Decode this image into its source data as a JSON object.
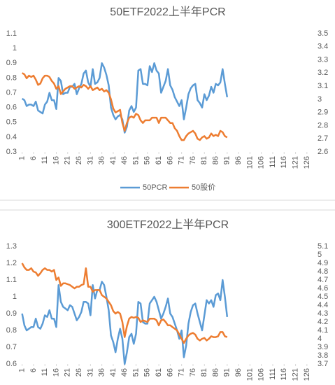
{
  "chart_data": [
    {
      "type": "line",
      "title": "50ETF2022上半年PCR",
      "x": [
        1,
        2,
        3,
        4,
        5,
        6,
        7,
        8,
        9,
        10,
        11,
        12,
        13,
        14,
        15,
        16,
        17,
        18,
        19,
        20,
        21,
        22,
        23,
        24,
        25,
        26,
        27,
        28,
        29,
        30,
        31,
        32,
        33,
        34,
        35,
        36,
        37,
        38,
        39,
        40,
        41,
        42,
        43,
        44,
        45,
        46,
        47,
        48,
        49,
        50,
        51,
        52,
        53,
        54,
        55,
        56,
        57,
        58,
        59,
        60,
        61,
        62,
        63,
        64,
        65,
        66,
        67,
        68,
        69,
        70,
        71,
        72,
        73,
        74,
        75,
        76,
        77,
        78,
        79,
        80,
        81,
        82,
        83,
        84,
        85,
        86,
        87,
        88,
        89,
        90,
        91
      ],
      "xlim": [
        0.5,
        128.5
      ],
      "xticks": [
        1,
        6,
        11,
        16,
        21,
        26,
        31,
        36,
        41,
        46,
        51,
        56,
        61,
        66,
        71,
        76,
        81,
        86,
        91,
        96,
        101,
        106,
        111,
        116,
        121,
        126
      ],
      "ylim": [
        0.3,
        1.1
      ],
      "yticks": [
        0.3,
        0.4,
        0.5,
        0.6,
        0.7,
        0.8,
        0.9,
        1,
        1.1
      ],
      "y2lim": [
        2.6,
        3.5
      ],
      "y2ticks": [
        2.6,
        2.7,
        2.8,
        2.9,
        3,
        3.1,
        3.2,
        3.3,
        3.4,
        3.5
      ],
      "legend": "bottom",
      "series": [
        {
          "name": "50PCR",
          "color": "#5b9bd5",
          "values": [
            0.66,
            0.65,
            0.61,
            0.62,
            0.62,
            0.61,
            0.64,
            0.58,
            0.57,
            0.56,
            0.62,
            0.64,
            0.7,
            0.65,
            0.65,
            0.59,
            0.8,
            0.78,
            0.69,
            0.7,
            0.7,
            0.74,
            0.74,
            0.76,
            0.69,
            0.73,
            0.76,
            0.83,
            0.85,
            0.77,
            0.74,
            0.86,
            0.76,
            0.77,
            0.8,
            0.9,
            0.87,
            0.82,
            0.75,
            0.6,
            0.55,
            0.52,
            0.54,
            0.55,
            0.52,
            0.43,
            0.47,
            0.58,
            0.61,
            0.57,
            0.6,
            0.85,
            0.86,
            0.76,
            0.76,
            0.75,
            0.88,
            0.84,
            0.9,
            0.85,
            0.83,
            0.7,
            0.74,
            0.78,
            0.86,
            0.75,
            0.72,
            0.67,
            0.64,
            0.61,
            0.65,
            0.52,
            0.6,
            0.69,
            0.73,
            0.75,
            0.76,
            0.65,
            0.63,
            0.6,
            0.69,
            0.65,
            0.68,
            0.74,
            0.7,
            0.76,
            0.75,
            0.77,
            0.86,
            0.76,
            0.67
          ]
        },
        {
          "name": "50股价",
          "color": "#ed7d31",
          "axis": "y2",
          "values": [
            3.2,
            3.19,
            3.16,
            3.18,
            3.17,
            3.18,
            3.15,
            3.11,
            3.12,
            3.16,
            3.18,
            3.18,
            3.17,
            3.14,
            3.12,
            3.08,
            3.1,
            3.04,
            3.06,
            3.08,
            3.09,
            3.1,
            3.1,
            3.08,
            3.09,
            3.1,
            3.09,
            3.11,
            3.1,
            3.08,
            3.1,
            3.07,
            3.08,
            3.09,
            3.07,
            3.08,
            3.06,
            3.07,
            3.05,
            3.0,
            2.93,
            2.9,
            2.91,
            2.92,
            2.82,
            2.76,
            2.82,
            2.86,
            2.87,
            2.86,
            2.89,
            2.88,
            2.84,
            2.82,
            2.84,
            2.84,
            2.84,
            2.86,
            2.86,
            2.86,
            2.82,
            2.86,
            2.86,
            2.86,
            2.84,
            2.82,
            2.82,
            2.78,
            2.76,
            2.72,
            2.69,
            2.69,
            2.72,
            2.74,
            2.75,
            2.76,
            2.74,
            2.7,
            2.69,
            2.71,
            2.72,
            2.7,
            2.71,
            2.74,
            2.72,
            2.73,
            2.72,
            2.76,
            2.75,
            2.72,
            2.71
          ]
        }
      ]
    },
    {
      "type": "line",
      "title": "300ETF2022上半年PCR",
      "x": [
        1,
        2,
        3,
        4,
        5,
        6,
        7,
        8,
        9,
        10,
        11,
        12,
        13,
        14,
        15,
        16,
        17,
        18,
        19,
        20,
        21,
        22,
        23,
        24,
        25,
        26,
        27,
        28,
        29,
        30,
        31,
        32,
        33,
        34,
        35,
        36,
        37,
        38,
        39,
        40,
        41,
        42,
        43,
        44,
        45,
        46,
        47,
        48,
        49,
        50,
        51,
        52,
        53,
        54,
        55,
        56,
        57,
        58,
        59,
        60,
        61,
        62,
        63,
        64,
        65,
        66,
        67,
        68,
        69,
        70,
        71,
        72,
        73,
        74,
        75,
        76,
        77,
        78,
        79,
        80,
        81,
        82,
        83,
        84,
        85,
        86,
        87,
        88,
        89,
        90,
        91
      ],
      "xlim": [
        0.5,
        128.5
      ],
      "xticks": [
        1,
        6,
        11,
        16,
        21,
        26,
        31,
        36,
        41,
        46,
        51,
        56,
        61,
        66,
        71,
        76,
        81,
        86,
        91,
        96,
        101,
        106,
        111,
        116,
        121,
        126
      ],
      "ylim": [
        0.6,
        1.3
      ],
      "yticks": [
        0.6,
        0.7,
        0.8,
        0.9,
        1,
        1.1,
        1.2,
        1.3
      ],
      "y2lim": [
        3.7,
        5.1
      ],
      "y2ticks": [
        3.7,
        3.8,
        3.9,
        4,
        4.1,
        4.2,
        4.3,
        4.4,
        4.5,
        4.6,
        4.7,
        4.8,
        4.9,
        5,
        5.1
      ],
      "series": [
        {
          "color": "#5b9bd5",
          "values": [
            0.9,
            0.83,
            0.8,
            0.81,
            0.82,
            0.82,
            0.87,
            0.82,
            0.81,
            0.84,
            0.89,
            0.88,
            0.92,
            0.87,
            0.87,
            0.82,
            1.07,
            0.97,
            0.94,
            0.93,
            0.92,
            0.95,
            0.94,
            0.9,
            0.86,
            0.88,
            0.91,
            0.97,
            0.97,
            0.96,
            0.89,
            1.07,
            0.99,
            1.04,
            1.04,
            1.09,
            1.07,
            1.0,
            0.92,
            0.77,
            0.73,
            0.67,
            0.75,
            0.81,
            0.75,
            0.6,
            0.67,
            0.76,
            0.78,
            0.72,
            0.78,
            0.97,
            0.96,
            0.85,
            0.84,
            0.84,
            0.96,
            0.98,
            1.0,
            0.97,
            0.92,
            0.87,
            0.9,
            0.94,
            0.99,
            0.9,
            0.88,
            0.84,
            0.8,
            0.75,
            0.8,
            0.64,
            0.71,
            0.84,
            0.91,
            0.95,
            0.96,
            0.9,
            0.85,
            0.8,
            0.89,
            0.98,
            0.96,
            0.98,
            0.94,
            1.01,
            1.02,
            0.98,
            1.1,
            1.0,
            0.88
          ]
        },
        {
          "color": "#ed7d31",
          "axis": "y2",
          "values": [
            4.9,
            4.85,
            4.82,
            4.82,
            4.84,
            4.8,
            4.79,
            4.75,
            4.78,
            4.82,
            4.84,
            4.82,
            4.82,
            4.8,
            4.82,
            4.7,
            4.73,
            4.63,
            4.66,
            4.66,
            4.65,
            4.64,
            4.62,
            4.6,
            4.62,
            4.62,
            4.64,
            4.65,
            4.84,
            4.62,
            4.62,
            4.56,
            4.58,
            4.58,
            4.58,
            4.52,
            4.5,
            4.48,
            4.44,
            4.4,
            4.33,
            4.3,
            4.32,
            4.3,
            4.2,
            4.02,
            4.15,
            4.24,
            4.26,
            4.25,
            4.26,
            4.25,
            4.2,
            4.22,
            4.21,
            4.2,
            4.24,
            4.24,
            4.24,
            4.22,
            4.16,
            4.22,
            4.23,
            4.2,
            4.16,
            4.16,
            4.14,
            4.12,
            4.1,
            4.05,
            4.0,
            3.95,
            4.0,
            4.04,
            4.06,
            4.07,
            4.05,
            4.0,
            3.98,
            4.0,
            4.01,
            3.98,
            4.0,
            4.03,
            4.02,
            4.02,
            4.03,
            4.08,
            4.08,
            4.03,
            4.02
          ]
        }
      ]
    }
  ]
}
